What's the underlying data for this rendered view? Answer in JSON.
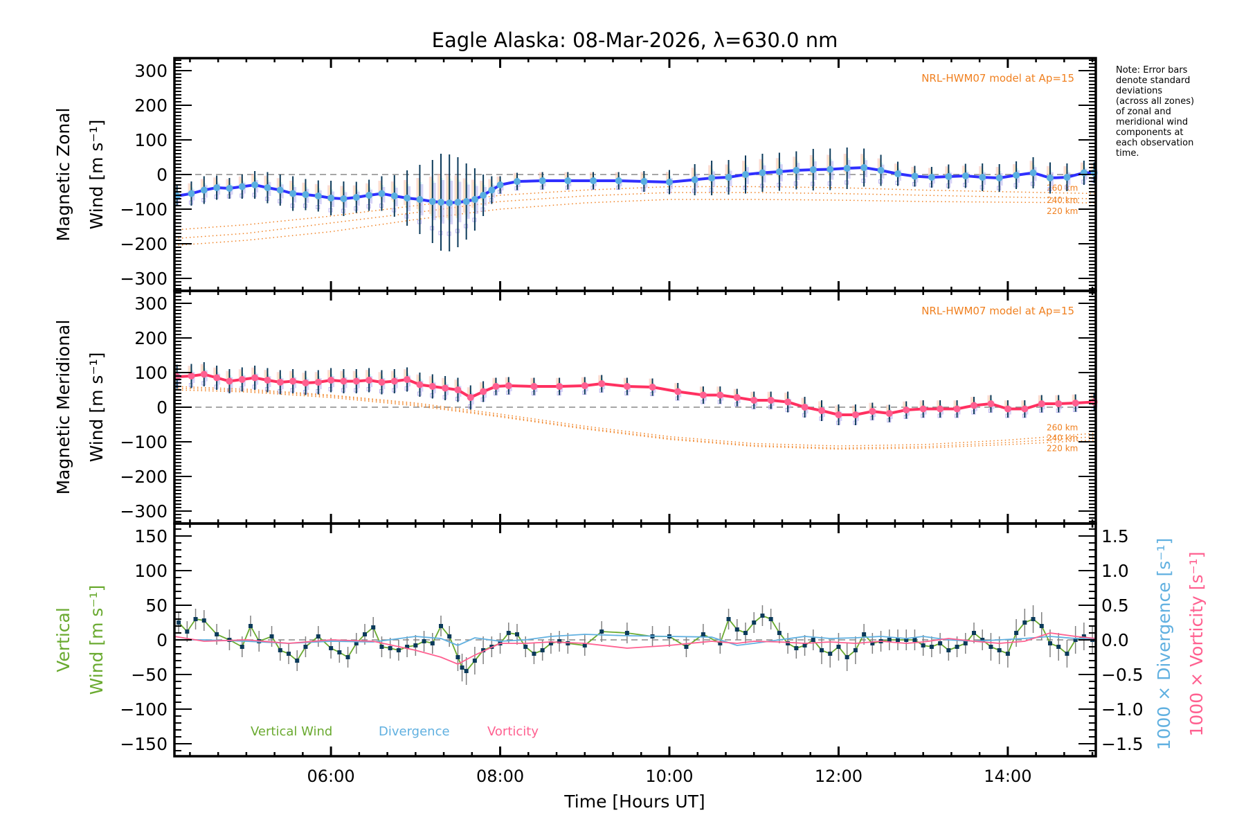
{
  "title": "Eagle Alaska: 08-Mar-2026, λ=630.0 nm",
  "note_lines": [
    "Note: Error bars",
    "denote standard",
    "deviations",
    "(across all zones)",
    "of zonal and",
    "meridional wind",
    "components at",
    "each observation",
    "time."
  ],
  "colors": {
    "zonal_line": "#2f2fff",
    "zonal_points": "#5aaee0",
    "meridional_line": "#ff3060",
    "meridional_points": "#ff6090",
    "errorbar": "#0b3a5a",
    "zone_cloud_lavender": "#b8b0f0",
    "zone_cloud_peach": "#f8c0b0",
    "zone_cloud_yellow": "#f8e8a8",
    "zone_cloud_cyan": "#b8f0f0",
    "model": "#f08020",
    "vertical_wind": "#6aaa30",
    "vertical_points": "#0b3a5a",
    "divergence": "#60b0e0",
    "vorticity": "#ff6090",
    "zero_line": "#888888"
  },
  "chart_data": [
    {
      "type": "line",
      "panel": "zonal",
      "ylabel_line1": "Magnetic Zonal",
      "ylabel_line2": "Wind [m s⁻¹]",
      "xlabel": "",
      "xlim": [
        4.15,
        15.04
      ],
      "ylim": [
        -336,
        336
      ],
      "yticks": [
        -300,
        -200,
        -100,
        0,
        100,
        200,
        300
      ],
      "model_label": "NRL-HWM07 model at Ap=15",
      "model_curves": [
        {
          "name": "260 km",
          "x": [
            4.15,
            5,
            6,
            7,
            8,
            9,
            10,
            11,
            12,
            13,
            14,
            15.04
          ],
          "y": [
            -160,
            -145,
            -120,
            -90,
            -60,
            -45,
            -35,
            -35,
            -38,
            -45,
            -50,
            -55
          ]
        },
        {
          "name": "240 km",
          "x": [
            4.15,
            5,
            6,
            7,
            8,
            9,
            10,
            11,
            12,
            13,
            14,
            15.04
          ],
          "y": [
            -185,
            -170,
            -140,
            -110,
            -78,
            -62,
            -52,
            -52,
            -55,
            -60,
            -65,
            -70
          ]
        },
        {
          "name": "220 km",
          "x": [
            4.15,
            5,
            6,
            7,
            8,
            9,
            10,
            11,
            12,
            13,
            14,
            15.04
          ],
          "y": [
            -205,
            -190,
            -165,
            -130,
            -100,
            -82,
            -72,
            -72,
            -74,
            -78,
            -80,
            -82
          ]
        }
      ],
      "series": [
        {
          "name": "Magnetic Zonal Wind",
          "x": [
            4.18,
            4.35,
            4.5,
            4.65,
            4.8,
            4.95,
            5.1,
            5.25,
            5.4,
            5.55,
            5.7,
            5.85,
            6.0,
            6.15,
            6.3,
            6.45,
            6.6,
            6.75,
            6.9,
            7.05,
            7.2,
            7.3,
            7.4,
            7.5,
            7.6,
            7.7,
            7.8,
            7.9,
            8.0,
            8.2,
            8.5,
            8.8,
            9.1,
            9.4,
            9.7,
            10.0,
            10.3,
            10.5,
            10.7,
            10.9,
            11.1,
            11.3,
            11.5,
            11.7,
            11.9,
            12.1,
            12.3,
            12.5,
            12.7,
            12.9,
            13.1,
            13.3,
            13.5,
            13.7,
            13.9,
            14.1,
            14.3,
            14.5,
            14.7,
            14.9,
            15.02
          ],
          "y": [
            -62,
            -55,
            -45,
            -38,
            -40,
            -35,
            -30,
            -38,
            -45,
            -55,
            -58,
            -62,
            -68,
            -70,
            -66,
            -60,
            -55,
            -62,
            -68,
            -72,
            -78,
            -80,
            -82,
            -80,
            -78,
            -72,
            -60,
            -45,
            -30,
            -20,
            -18,
            -18,
            -18,
            -18,
            -20,
            -22,
            -15,
            -10,
            -8,
            0,
            5,
            8,
            12,
            14,
            15,
            18,
            20,
            12,
            2,
            -5,
            -8,
            -6,
            -4,
            -8,
            -10,
            -2,
            5,
            -10,
            -8,
            5,
            5
          ],
          "err": [
            30,
            35,
            40,
            35,
            30,
            35,
            40,
            45,
            45,
            50,
            45,
            45,
            50,
            50,
            45,
            45,
            50,
            60,
            80,
            100,
            120,
            140,
            140,
            130,
            110,
            90,
            60,
            40,
            25,
            25,
            25,
            25,
            25,
            25,
            30,
            35,
            45,
            50,
            50,
            55,
            55,
            55,
            55,
            60,
            60,
            60,
            55,
            45,
            35,
            30,
            30,
            35,
            35,
            40,
            40,
            40,
            45,
            45,
            40,
            35,
            30
          ]
        }
      ]
    },
    {
      "type": "line",
      "panel": "meridional",
      "ylabel_line1": "Magnetic Meridional",
      "ylabel_line2": "Wind [m s⁻¹]",
      "xlabel": "",
      "xlim": [
        4.15,
        15.04
      ],
      "ylim": [
        -336,
        336
      ],
      "yticks": [
        -300,
        -200,
        -100,
        0,
        100,
        200,
        300
      ],
      "model_label": "NRL-HWM07 model at Ap=15",
      "model_curves": [
        {
          "name": "260 km",
          "x": [
            4.15,
            5,
            6,
            7,
            8,
            9,
            10,
            11,
            12,
            13,
            14,
            15.04
          ],
          "y": [
            60,
            52,
            35,
            12,
            -20,
            -55,
            -85,
            -105,
            -112,
            -108,
            -95,
            -75
          ]
        },
        {
          "name": "240 km",
          "x": [
            4.15,
            5,
            6,
            7,
            8,
            9,
            10,
            11,
            12,
            13,
            14,
            15.04
          ],
          "y": [
            55,
            48,
            32,
            8,
            -25,
            -60,
            -90,
            -110,
            -118,
            -114,
            -102,
            -85
          ]
        },
        {
          "name": "220 km",
          "x": [
            4.15,
            5,
            6,
            7,
            8,
            9,
            10,
            11,
            12,
            13,
            14,
            15.04
          ],
          "y": [
            50,
            44,
            28,
            4,
            -28,
            -63,
            -93,
            -113,
            -121,
            -118,
            -108,
            -95
          ]
        }
      ],
      "series": [
        {
          "name": "Magnetic Meridional Wind",
          "x": [
            4.18,
            4.35,
            4.5,
            4.65,
            4.8,
            4.95,
            5.1,
            5.25,
            5.4,
            5.55,
            5.7,
            5.85,
            6.0,
            6.15,
            6.3,
            6.45,
            6.6,
            6.75,
            6.9,
            7.05,
            7.2,
            7.35,
            7.5,
            7.65,
            7.8,
            7.95,
            8.1,
            8.4,
            8.7,
            9.0,
            9.2,
            9.5,
            9.8,
            10.1,
            10.4,
            10.6,
            10.8,
            11.0,
            11.2,
            11.4,
            11.6,
            11.8,
            12.0,
            12.2,
            12.4,
            12.6,
            12.8,
            13.0,
            13.2,
            13.4,
            13.6,
            13.8,
            14.0,
            14.2,
            14.4,
            14.6,
            14.8,
            15.02
          ],
          "y": [
            88,
            90,
            95,
            85,
            75,
            80,
            85,
            78,
            72,
            75,
            70,
            72,
            78,
            75,
            75,
            78,
            72,
            75,
            80,
            65,
            60,
            55,
            50,
            28,
            45,
            60,
            62,
            60,
            60,
            62,
            68,
            60,
            58,
            45,
            35,
            35,
            28,
            20,
            20,
            15,
            0,
            -10,
            -22,
            -22,
            -12,
            -18,
            -8,
            -5,
            -5,
            -5,
            5,
            10,
            -5,
            -5,
            10,
            10,
            12,
            15
          ],
          "err": [
            35,
            35,
            35,
            35,
            35,
            35,
            35,
            35,
            35,
            35,
            35,
            35,
            35,
            35,
            35,
            35,
            35,
            35,
            35,
            35,
            35,
            35,
            35,
            35,
            30,
            25,
            25,
            25,
            25,
            25,
            25,
            25,
            25,
            25,
            25,
            25,
            25,
            25,
            25,
            30,
            30,
            30,
            30,
            30,
            25,
            25,
            25,
            25,
            25,
            25,
            25,
            25,
            25,
            25,
            25,
            25,
            25,
            25
          ]
        }
      ]
    },
    {
      "type": "line",
      "panel": "vertical",
      "ylabel_line1": "Vertical",
      "ylabel_line2": "Wind [m s⁻¹]",
      "y2label_div": "1000 × Divergence [s⁻¹]",
      "y2label_vor": "1000 × Vorticity [s⁻¹]",
      "xlabel": "Time [Hours UT]",
      "xlim": [
        4.15,
        15.04
      ],
      "xticks": [
        6,
        8,
        10,
        12,
        14
      ],
      "xtick_labels": [
        "06:00",
        "08:00",
        "10:00",
        "12:00",
        "14:00"
      ],
      "ylim": [
        -168,
        168
      ],
      "yticks": [
        -150,
        -100,
        -50,
        0,
        50,
        100,
        150
      ],
      "y2lim": [
        -1.68,
        1.68
      ],
      "y2ticks": [
        -1.5,
        -1.0,
        -0.5,
        0.0,
        0.5,
        1.0,
        1.5
      ],
      "y2tick_labels": [
        "−1.5",
        "−1.0",
        "−0.5",
        "0.0",
        "0.5",
        "1.0",
        "1.5"
      ],
      "legend": [
        "Vertical Wind",
        "Divergence",
        "Vorticity"
      ],
      "legend_position": "bottom-left",
      "series": [
        {
          "name": "Vertical Wind",
          "x": [
            4.2,
            4.3,
            4.4,
            4.5,
            4.65,
            4.8,
            4.95,
            5.05,
            5.15,
            5.3,
            5.4,
            5.5,
            5.6,
            5.7,
            5.85,
            6.0,
            6.1,
            6.2,
            6.3,
            6.4,
            6.5,
            6.6,
            6.7,
            6.8,
            6.9,
            7.0,
            7.1,
            7.2,
            7.3,
            7.4,
            7.5,
            7.55,
            7.6,
            7.7,
            7.8,
            7.9,
            8.0,
            8.1,
            8.2,
            8.3,
            8.4,
            8.5,
            8.6,
            8.7,
            8.8,
            9.0,
            9.2,
            9.5,
            9.8,
            10.0,
            10.2,
            10.4,
            10.6,
            10.7,
            10.8,
            10.9,
            11.0,
            11.1,
            11.2,
            11.3,
            11.4,
            11.5,
            11.6,
            11.7,
            11.8,
            11.9,
            12.0,
            12.1,
            12.2,
            12.3,
            12.4,
            12.5,
            12.6,
            12.7,
            12.8,
            12.9,
            13.0,
            13.1,
            13.2,
            13.3,
            13.4,
            13.5,
            13.6,
            13.7,
            13.8,
            13.9,
            14.0,
            14.1,
            14.2,
            14.3,
            14.4,
            14.5,
            14.6,
            14.7,
            14.8,
            14.9,
            15.0
          ],
          "y": [
            25,
            12,
            30,
            28,
            8,
            0,
            -10,
            20,
            -2,
            5,
            -15,
            -20,
            -30,
            -10,
            5,
            -12,
            -18,
            -25,
            -5,
            8,
            18,
            -10,
            -12,
            -15,
            -10,
            -8,
            -2,
            -5,
            20,
            5,
            -25,
            -40,
            -45,
            -30,
            -15,
            -10,
            -5,
            10,
            8,
            -10,
            -20,
            -15,
            -5,
            -2,
            -5,
            -8,
            12,
            10,
            5,
            5,
            -10,
            8,
            -5,
            30,
            15,
            10,
            25,
            35,
            30,
            10,
            -5,
            -12,
            -8,
            0,
            -15,
            -20,
            -10,
            -25,
            -15,
            8,
            -5,
            -2,
            0,
            0,
            0,
            0,
            -8,
            -10,
            -5,
            -15,
            -10,
            -5,
            10,
            0,
            -10,
            -15,
            -20,
            10,
            25,
            30,
            20,
            -5,
            -10,
            -20,
            0,
            5,
            0
          ],
          "err": [
            15,
            15,
            15,
            15,
            15,
            15,
            15,
            15,
            15,
            15,
            15,
            15,
            15,
            15,
            15,
            15,
            15,
            15,
            15,
            15,
            15,
            15,
            15,
            15,
            15,
            15,
            15,
            15,
            15,
            15,
            20,
            20,
            20,
            20,
            20,
            15,
            15,
            15,
            15,
            15,
            15,
            15,
            15,
            15,
            15,
            15,
            15,
            15,
            15,
            15,
            15,
            15,
            15,
            15,
            15,
            15,
            15,
            15,
            15,
            15,
            15,
            15,
            15,
            15,
            20,
            20,
            20,
            20,
            20,
            15,
            15,
            15,
            15,
            15,
            15,
            15,
            15,
            15,
            15,
            15,
            15,
            15,
            15,
            15,
            20,
            20,
            20,
            20,
            20,
            20,
            20,
            20,
            20,
            20,
            20,
            20,
            20
          ]
        },
        {
          "name": "Divergence",
          "axis": "right",
          "x": [
            4.15,
            4.5,
            5.0,
            5.5,
            6.0,
            6.5,
            7.0,
            7.3,
            7.5,
            7.7,
            8.0,
            8.3,
            8.6,
            9.0,
            9.5,
            10.0,
            10.5,
            10.8,
            11.0,
            11.3,
            11.6,
            11.9,
            12.2,
            12.5,
            12.8,
            13.0,
            13.3,
            13.6,
            13.9,
            14.2,
            14.5,
            14.8,
            15.04
          ],
          "y": [
            0.0,
            0.0,
            -0.02,
            -0.05,
            -0.02,
            -0.03,
            0.05,
            0.02,
            -0.08,
            0.03,
            -0.02,
            0.0,
            0.05,
            0.08,
            0.06,
            0.05,
            0.04,
            -0.08,
            -0.05,
            0.0,
            0.05,
            0.02,
            0.03,
            0.05,
            0.02,
            0.05,
            0.0,
            -0.02,
            0.0,
            0.02,
            0.05,
            0.02,
            0.02
          ]
        },
        {
          "name": "Vorticity",
          "axis": "right",
          "x": [
            4.15,
            4.5,
            5.0,
            5.5,
            6.0,
            6.5,
            7.0,
            7.3,
            7.5,
            7.7,
            8.0,
            8.3,
            8.6,
            9.0,
            9.5,
            10.0,
            10.5,
            10.8,
            11.0,
            11.3,
            11.6,
            11.9,
            12.2,
            12.5,
            12.8,
            13.0,
            13.3,
            13.6,
            13.9,
            14.2,
            14.5,
            14.8,
            15.04
          ],
          "y": [
            0.05,
            -0.02,
            0.0,
            -0.05,
            0.0,
            -0.02,
            -0.15,
            -0.25,
            -0.35,
            -0.22,
            -0.05,
            -0.05,
            -0.03,
            -0.05,
            -0.12,
            -0.08,
            -0.02,
            -0.05,
            -0.02,
            -0.03,
            -0.05,
            -0.03,
            -0.05,
            -0.02,
            -0.05,
            -0.03,
            0.02,
            -0.02,
            -0.05,
            -0.02,
            0.1,
            0.05,
            0.02
          ]
        }
      ]
    }
  ]
}
